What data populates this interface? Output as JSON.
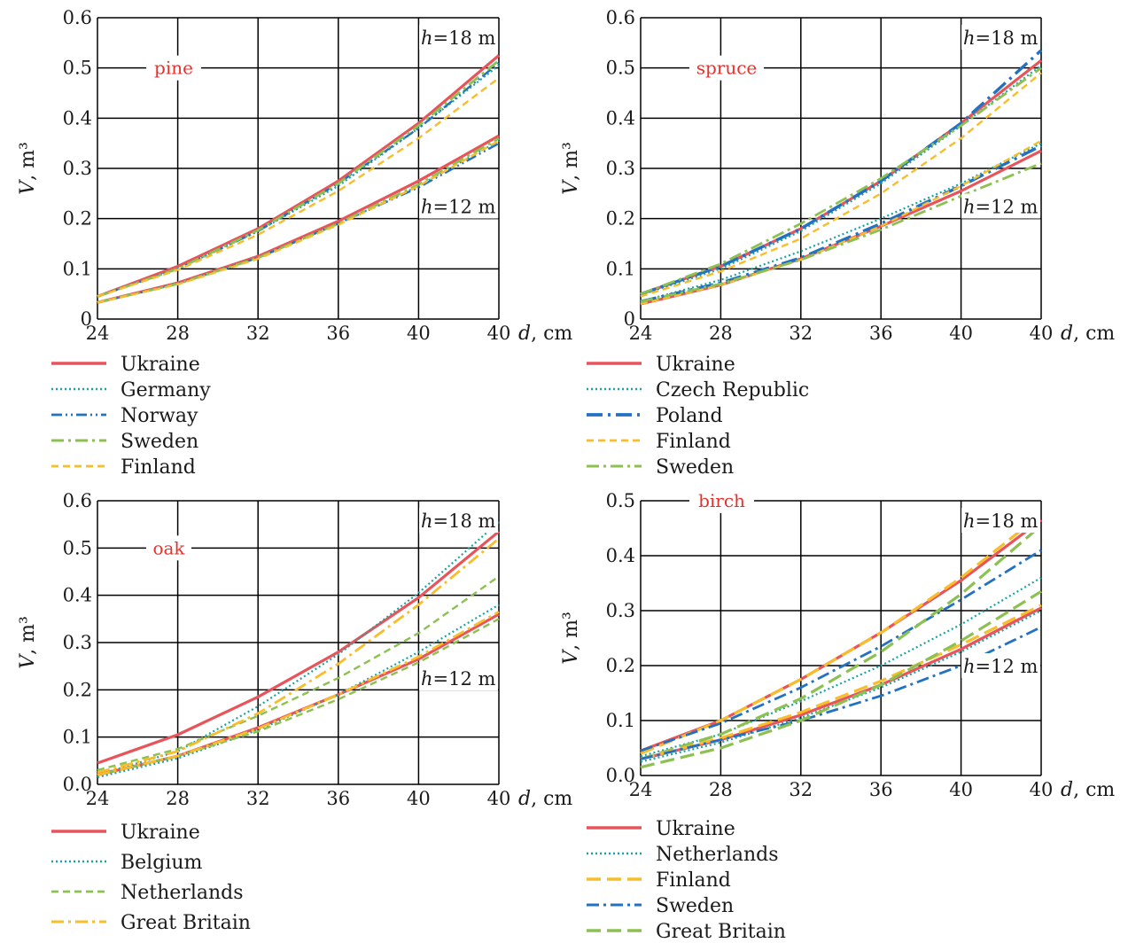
{
  "colors": {
    "Ukraine": "#e8545a",
    "teal": "#1aa3a3",
    "blue": "#2272c3",
    "green": "#8cc152",
    "yellow": "#f7bd2b",
    "species_label": "#e8302b",
    "grid": "#000000"
  },
  "chart_data": [
    {
      "type": "line",
      "species": "pine",
      "xlabel_var": "d",
      "xlabel_unit": ", cm",
      "ylabel_var": "V",
      "ylabel_unit": ", m³",
      "xlim": [
        24,
        40
      ],
      "ylim": [
        0,
        0.6
      ],
      "x_ticks": [
        "24",
        "28",
        "32",
        "36",
        "40",
        "40"
      ],
      "y_ticks": [
        "0",
        "0.1",
        "0.2",
        "0.3",
        "0.4",
        "0.5",
        "0.6"
      ],
      "height_labels": [
        "h=18 m",
        "h=12 m"
      ],
      "x": [
        24,
        28,
        32,
        36,
        40,
        40
      ],
      "legend": [
        {
          "name": "Ukraine",
          "color": "Ukraine",
          "dash": "solid"
        },
        {
          "name": "Germany",
          "color": "teal",
          "dash": "dotted"
        },
        {
          "name": "Norway",
          "color": "blue",
          "dash": "dashdotdot"
        },
        {
          "name": "Sweden",
          "color": "green",
          "dash": "dashdot"
        },
        {
          "name": "Finland",
          "color": "yellow",
          "dash": "dashed"
        }
      ],
      "series": [
        {
          "name": "Ukraine",
          "h": 18,
          "values": [
            0.045,
            0.105,
            0.18,
            0.275,
            0.39,
            0.525
          ]
        },
        {
          "name": "Germany",
          "h": 18,
          "values": [
            0.045,
            0.1,
            0.175,
            0.265,
            0.38,
            0.505
          ]
        },
        {
          "name": "Norway",
          "h": 18,
          "values": [
            0.045,
            0.1,
            0.175,
            0.27,
            0.38,
            0.51
          ]
        },
        {
          "name": "Sweden",
          "h": 18,
          "values": [
            0.045,
            0.1,
            0.177,
            0.27,
            0.385,
            0.515
          ]
        },
        {
          "name": "Finland",
          "h": 18,
          "values": [
            0.045,
            0.098,
            0.168,
            0.255,
            0.36,
            0.48
          ]
        },
        {
          "name": "Ukraine",
          "h": 12,
          "values": [
            0.033,
            0.072,
            0.125,
            0.195,
            0.275,
            0.365
          ]
        },
        {
          "name": "Germany",
          "h": 12,
          "values": [
            0.033,
            0.07,
            0.122,
            0.19,
            0.265,
            0.355
          ]
        },
        {
          "name": "Norway",
          "h": 12,
          "values": [
            0.033,
            0.07,
            0.122,
            0.19,
            0.262,
            0.35
          ]
        },
        {
          "name": "Sweden",
          "h": 12,
          "values": [
            0.033,
            0.07,
            0.122,
            0.19,
            0.268,
            0.36
          ]
        },
        {
          "name": "Finland",
          "h": 12,
          "values": [
            0.033,
            0.069,
            0.12,
            0.188,
            0.265,
            0.355
          ]
        }
      ]
    },
    {
      "type": "line",
      "species": "spruce",
      "xlabel_var": "d",
      "xlabel_unit": ", cm",
      "ylabel_var": "V",
      "ylabel_unit": ", m³",
      "xlim": [
        24,
        40
      ],
      "ylim": [
        0,
        0.6
      ],
      "x_ticks": [
        "24",
        "28",
        "32",
        "36",
        "40",
        "40"
      ],
      "y_ticks": [
        "0",
        "0.1",
        "0.2",
        "0.3",
        "0.4",
        "0.5",
        "0.6"
      ],
      "height_labels": [
        "h=18 m",
        "h=12 m"
      ],
      "x": [
        24,
        28,
        32,
        36,
        40,
        40
      ],
      "legend": [
        {
          "name": "Ukraine",
          "color": "Ukraine",
          "dash": "solid"
        },
        {
          "name": "Czech Republic",
          "color": "teal",
          "dash": "dotted"
        },
        {
          "name": "Poland",
          "color": "blue",
          "dash": "longdashdot"
        },
        {
          "name": "Finland",
          "color": "yellow",
          "dash": "dashed"
        },
        {
          "name": "Sweden",
          "color": "green",
          "dash": "dashdot"
        }
      ],
      "series": [
        {
          "name": "Ukraine",
          "h": 18,
          "values": [
            0.05,
            0.105,
            0.18,
            0.275,
            0.39,
            0.515
          ]
        },
        {
          "name": "Czech Republic",
          "h": 18,
          "values": [
            0.048,
            0.1,
            0.175,
            0.27,
            0.385,
            0.505
          ]
        },
        {
          "name": "Poland",
          "h": 18,
          "values": [
            0.05,
            0.105,
            0.18,
            0.275,
            0.39,
            0.535
          ]
        },
        {
          "name": "Finland",
          "h": 18,
          "values": [
            0.045,
            0.095,
            0.16,
            0.25,
            0.36,
            0.49
          ]
        },
        {
          "name": "Sweden",
          "h": 18,
          "values": [
            0.05,
            0.11,
            0.19,
            0.28,
            0.385,
            0.5
          ]
        },
        {
          "name": "Ukraine",
          "h": 12,
          "values": [
            0.03,
            0.068,
            0.12,
            0.185,
            0.255,
            0.335
          ]
        },
        {
          "name": "Czech Republic",
          "h": 12,
          "values": [
            0.035,
            0.078,
            0.135,
            0.2,
            0.27,
            0.35
          ]
        },
        {
          "name": "Poland",
          "h": 12,
          "values": [
            0.035,
            0.072,
            0.122,
            0.19,
            0.265,
            0.345
          ]
        },
        {
          "name": "Finland",
          "h": 12,
          "values": [
            0.03,
            0.068,
            0.118,
            0.185,
            0.265,
            0.355
          ]
        },
        {
          "name": "Sweden",
          "h": 12,
          "values": [
            0.035,
            0.07,
            0.118,
            0.178,
            0.245,
            0.31
          ]
        }
      ]
    },
    {
      "type": "line",
      "species": "oak",
      "xlabel_var": "d",
      "xlabel_unit": ", cm",
      "ylabel_var": "V",
      "ylabel_unit": ", m³",
      "xlim": [
        24,
        40
      ],
      "ylim": [
        0,
        0.6
      ],
      "x_ticks": [
        "24",
        "28",
        "32",
        "36",
        "40",
        "40"
      ],
      "y_ticks": [
        "0.0",
        "0.1",
        "0.2",
        "0.3",
        "0.4",
        "0.5",
        "0.6"
      ],
      "height_labels": [
        "h=18 m",
        "h=12 m"
      ],
      "x": [
        24,
        28,
        32,
        36,
        40,
        40
      ],
      "legend": [
        {
          "name": "Ukraine",
          "color": "Ukraine",
          "dash": "solid"
        },
        {
          "name": "Belgium",
          "color": "teal",
          "dash": "dotted"
        },
        {
          "name": "Netherlands",
          "color": "green",
          "dash": "dashed"
        },
        {
          "name": "Great Britain",
          "color": "yellow",
          "dash": "dashdot"
        }
      ],
      "series": [
        {
          "name": "Ukraine",
          "h": 18,
          "values": [
            0.045,
            0.105,
            0.185,
            0.28,
            0.395,
            0.535
          ]
        },
        {
          "name": "Belgium",
          "h": 18,
          "values": [
            0.02,
            0.07,
            0.165,
            0.275,
            0.405,
            0.555
          ]
        },
        {
          "name": "Netherlands",
          "h": 18,
          "values": [
            0.03,
            0.075,
            0.145,
            0.225,
            0.32,
            0.44
          ]
        },
        {
          "name": "Great Britain",
          "h": 18,
          "values": [
            0.025,
            0.07,
            0.15,
            0.255,
            0.38,
            0.52
          ]
        },
        {
          "name": "Ukraine",
          "h": 12,
          "values": [
            0.02,
            0.06,
            0.12,
            0.19,
            0.265,
            0.36
          ]
        },
        {
          "name": "Belgium",
          "h": 12,
          "values": [
            0.015,
            0.055,
            0.115,
            0.19,
            0.28,
            0.38
          ]
        },
        {
          "name": "Netherlands",
          "h": 12,
          "values": [
            0.02,
            0.06,
            0.112,
            0.18,
            0.258,
            0.35
          ]
        },
        {
          "name": "Great Britain",
          "h": 12,
          "values": [
            0.02,
            0.06,
            0.118,
            0.19,
            0.27,
            0.365
          ]
        }
      ]
    },
    {
      "type": "line",
      "species": "birch",
      "xlabel_var": "d",
      "xlabel_unit": ", cm",
      "ylabel_var": "V",
      "ylabel_unit": ", m³",
      "xlim": [
        24,
        40
      ],
      "ylim": [
        0,
        0.5
      ],
      "x_ticks": [
        "24",
        "28",
        "32",
        "36",
        "40",
        "40"
      ],
      "y_ticks": [
        "0.0",
        "0.1",
        "0.2",
        "0.3",
        "0.4",
        "0.5"
      ],
      "height_labels": [
        "h=18 m",
        "h=12 m"
      ],
      "x": [
        24,
        28,
        32,
        36,
        40,
        40
      ],
      "legend": [
        {
          "name": "Ukraine",
          "color": "Ukraine",
          "dash": "solid"
        },
        {
          "name": "Netherlands",
          "color": "teal",
          "dash": "dotted"
        },
        {
          "name": "Finland",
          "color": "yellow",
          "dash": "longdash"
        },
        {
          "name": "Sweden",
          "color": "blue",
          "dash": "dashdot"
        },
        {
          "name": "Great Britain",
          "color": "green",
          "dash": "longdash"
        }
      ],
      "series": [
        {
          "name": "Ukraine",
          "h": 18,
          "values": [
            0.045,
            0.1,
            0.175,
            0.26,
            0.355,
            0.465
          ]
        },
        {
          "name": "Netherlands",
          "h": 18,
          "values": [
            0.035,
            0.075,
            0.135,
            0.2,
            0.275,
            0.36
          ]
        },
        {
          "name": "Finland",
          "h": 18,
          "values": [
            0.04,
            0.1,
            0.175,
            0.26,
            0.36,
            0.475
          ]
        },
        {
          "name": "Sweden",
          "h": 18,
          "values": [
            0.045,
            0.095,
            0.16,
            0.235,
            0.32,
            0.41
          ]
        },
        {
          "name": "Great Britain",
          "h": 18,
          "values": [
            0.03,
            0.075,
            0.14,
            0.225,
            0.33,
            0.455
          ]
        },
        {
          "name": "Ukraine",
          "h": 12,
          "values": [
            0.03,
            0.065,
            0.11,
            0.165,
            0.23,
            0.305
          ]
        },
        {
          "name": "Netherlands",
          "h": 12,
          "values": [
            0.025,
            0.06,
            0.105,
            0.16,
            0.225,
            0.3
          ]
        },
        {
          "name": "Finland",
          "h": 12,
          "values": [
            0.03,
            0.068,
            0.115,
            0.172,
            0.238,
            0.31
          ]
        },
        {
          "name": "Sweden",
          "h": 12,
          "values": [
            0.03,
            0.065,
            0.1,
            0.145,
            0.2,
            0.27
          ]
        },
        {
          "name": "Great Britain",
          "h": 12,
          "values": [
            0.015,
            0.05,
            0.1,
            0.165,
            0.245,
            0.335
          ]
        }
      ]
    }
  ]
}
